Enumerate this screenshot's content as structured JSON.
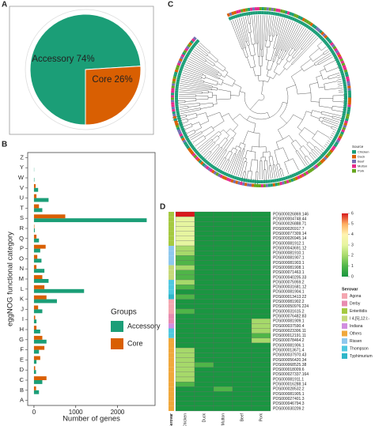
{
  "chart_data": [
    {
      "type": "pie",
      "label": "A",
      "categories": [
        "Accessory",
        "Core"
      ],
      "values": [
        74,
        26
      ],
      "value_labels": [
        "Accessory 74%",
        "Core 26%"
      ],
      "colors": [
        "#1b9e77",
        "#d95f02"
      ]
    },
    {
      "type": "bar",
      "label": "B",
      "orientation": "horizontal",
      "categories": [
        "Z",
        "Y",
        "W",
        "V",
        "U",
        "T",
        "S",
        "R",
        "Q",
        "P",
        "O",
        "N",
        "M",
        "L",
        "K",
        "J",
        "I",
        "H",
        "G",
        "F",
        "E",
        "D",
        "C",
        "B",
        "A"
      ],
      "series": [
        {
          "name": "Accessory",
          "color": "#1b9e77",
          "values": [
            0,
            5,
            10,
            100,
            350,
            200,
            2700,
            20,
            120,
            150,
            180,
            250,
            350,
            1200,
            550,
            200,
            60,
            150,
            300,
            120,
            60,
            50,
            200,
            120,
            0
          ]
        },
        {
          "name": "Core",
          "color": "#d95f02",
          "values": [
            0,
            0,
            0,
            40,
            60,
            120,
            750,
            10,
            60,
            280,
            80,
            60,
            200,
            250,
            300,
            100,
            30,
            60,
            200,
            250,
            150,
            30,
            300,
            50,
            0
          ]
        }
      ],
      "xlim": [
        -150,
        2900
      ],
      "xticks": [
        0,
        1000,
        2000
      ],
      "x_label": "Number of genes",
      "y_label": "eggNOG functional category",
      "legend_title": "Groups"
    },
    {
      "type": "tree",
      "label": "C",
      "legend_title": "Source",
      "series": [
        {
          "name": "Chicken",
          "color": "#1b9e77"
        },
        {
          "name": "Duck",
          "color": "#d95f02"
        },
        {
          "name": "Beef",
          "color": "#7570b3"
        },
        {
          "name": "Mutton",
          "color": "#e7298a"
        },
        {
          "name": "Pork",
          "color": "#66a61e"
        }
      ]
    },
    {
      "type": "heatmap",
      "label": "D",
      "columns": [
        "Chicken",
        "Duck",
        "Mutton",
        "Beef",
        "Pork"
      ],
      "rows": [
        "PDS000026869.146",
        "PDS000004748.44",
        "PDS000026888.71",
        "PDS000026917.7",
        "PDS000077309.14",
        "PDS000026945.14",
        "PDS000081912.1",
        "PDS000043691.12",
        "PDS000081910.1",
        "PDS000081907.1",
        "PDS000081903.1",
        "PDS000081908.1",
        "PDS000071463.1",
        "PDS000040205.33",
        "PDS000075959.2",
        "PDS000031681.12",
        "PDS000081904.1",
        "PDS000013413.22",
        "PDS000081902.2",
        "PDS000050976.224",
        "PDS000031615.2",
        "PDS000076482.83",
        "PDS000081909.1",
        "PDS000037590.4",
        "PDS000023306.11",
        "PDS000012191.11",
        "PDS000078464.2",
        "PDS000081906.1",
        "PDS000013671.4",
        "PDS000037970.43",
        "PDS000056420.34",
        "PDS000068525.38",
        "PDS000018009.6",
        "PDS000027337.164",
        "PDS000081911.1",
        "PDS000016288.14",
        "PDS000028532.2",
        "PDS000081905.1",
        "PDS000027401.3",
        "PDS000046794.3",
        "PDS000030209.2"
      ],
      "values": [
        [
          6,
          0,
          0,
          0,
          0
        ],
        [
          3,
          0,
          0,
          0,
          0
        ],
        [
          3,
          0,
          0,
          0,
          0
        ],
        [
          3,
          0,
          0,
          0,
          0
        ],
        [
          3,
          0,
          0,
          0,
          0
        ],
        [
          3,
          0,
          0,
          0,
          0
        ],
        [
          3,
          0,
          0,
          0,
          0
        ],
        [
          2,
          0,
          0,
          0,
          0
        ],
        [
          2,
          0,
          0,
          0,
          0
        ],
        [
          1,
          0,
          0,
          0,
          0
        ],
        [
          1,
          0,
          0,
          0,
          0
        ],
        [
          2,
          0,
          0,
          0,
          0
        ],
        [
          1,
          0,
          0,
          0,
          0
        ],
        [
          1,
          0,
          0,
          0,
          0
        ],
        [
          2,
          0,
          0,
          0,
          0
        ],
        [
          1,
          0,
          0,
          0,
          0
        ],
        [
          0,
          0,
          0,
          0,
          0
        ],
        [
          1,
          0,
          0,
          0,
          0
        ],
        [
          0,
          0,
          0,
          0,
          0
        ],
        [
          0,
          0,
          0,
          0,
          0
        ],
        [
          1,
          0,
          0,
          0,
          0
        ],
        [
          0,
          0,
          0,
          0,
          0
        ],
        [
          0,
          0,
          0,
          0,
          2
        ],
        [
          0,
          0,
          0,
          0,
          2
        ],
        [
          0,
          0,
          0,
          0,
          2
        ],
        [
          0,
          0,
          0,
          0,
          1
        ],
        [
          0,
          0,
          0,
          0,
          2
        ],
        [
          0,
          0,
          0,
          0,
          0
        ],
        [
          2,
          0,
          0,
          0,
          0
        ],
        [
          2,
          0,
          0,
          0,
          0
        ],
        [
          2,
          0,
          0,
          0,
          0
        ],
        [
          2,
          1,
          0,
          0,
          0
        ],
        [
          2,
          0,
          0,
          0,
          0
        ],
        [
          2,
          0,
          0,
          0,
          0
        ],
        [
          2,
          0,
          0,
          0,
          0
        ],
        [
          1,
          0,
          0,
          0,
          0
        ],
        [
          0,
          0,
          1,
          0,
          0
        ],
        [
          0,
          0,
          0,
          0,
          0
        ],
        [
          0,
          0,
          0,
          0,
          0
        ],
        [
          0,
          0,
          0,
          0,
          0
        ],
        [
          0,
          0,
          0,
          0,
          0
        ]
      ],
      "zlim": [
        0,
        6
      ],
      "zticks": [
        0,
        1,
        2,
        3,
        4,
        5,
        6
      ],
      "scale_colors": [
        "#1a9641",
        "#4fb548",
        "#a6d96a",
        "#e6f5a0",
        "#fff3b0",
        "#fdae61",
        "#d7191c"
      ],
      "serovar_title": "Serovar",
      "serovar_label": "Serovar",
      "serovars": [
        {
          "name": "Agona",
          "color": "#f4a6b0"
        },
        {
          "name": "Derby",
          "color": "#e88bb0"
        },
        {
          "name": "Enteritidis",
          "color": "#a5c940"
        },
        {
          "name": "I 4,[5],12:i:-",
          "color": "#c6d97a"
        },
        {
          "name": "Indiana",
          "color": "#d18ee0"
        },
        {
          "name": "Others",
          "color": "#f0a83c"
        },
        {
          "name": "Rissen",
          "color": "#8ec8ee"
        },
        {
          "name": "Thompson",
          "color": "#4fc8e0"
        },
        {
          "name": "Typhimurium",
          "color": "#2fb7c9"
        }
      ],
      "row_serovar": [
        "Enteritidis",
        "Enteritidis",
        "Enteritidis",
        "Enteritidis",
        "Enteritidis",
        "Enteritidis",
        "Enteritidis",
        "Rissen",
        "Rissen",
        "Rissen",
        "Rissen",
        "I 4,[5],12:i:-",
        "I 4,[5],12:i:-",
        "I 4,[5],12:i:-",
        "Thompson",
        "Thompson",
        "Thompson",
        "Typhimurium",
        "Agona",
        "Agona",
        "Agona",
        "Derby",
        "Derby",
        "Indiana",
        "Thompson",
        "Thompson",
        "Others",
        "Others",
        "Others",
        "Others",
        "Others",
        "Others",
        "Others",
        "Others",
        "Others",
        "Others",
        "Others",
        "Others",
        "Others",
        "Others",
        "Others"
      ]
    }
  ]
}
